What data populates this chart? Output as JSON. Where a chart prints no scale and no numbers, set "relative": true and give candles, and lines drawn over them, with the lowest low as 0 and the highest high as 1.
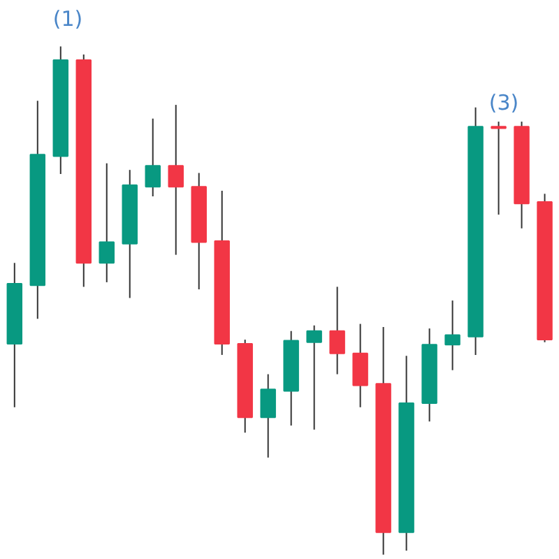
{
  "chart_data": {
    "type": "candlestick",
    "relative": true,
    "tick_labels": false,
    "categories": [
      null,
      null,
      null,
      null,
      null,
      null,
      null,
      null,
      null,
      null,
      null,
      null,
      null,
      null,
      null,
      null,
      null,
      null,
      null,
      null,
      null,
      null,
      null,
      null
    ],
    "ohlc": [
      [
        0.415,
        0.574,
        0.29,
        0.533
      ],
      [
        0.53,
        0.893,
        0.464,
        0.787
      ],
      [
        0.784,
        1.0,
        0.749,
        0.973
      ],
      [
        0.973,
        0.984,
        0.527,
        0.574
      ],
      [
        0.574,
        0.77,
        0.536,
        0.615
      ],
      [
        0.612,
        0.757,
        0.505,
        0.727
      ],
      [
        0.724,
        0.858,
        0.705,
        0.765
      ],
      [
        0.765,
        0.885,
        0.59,
        0.724
      ],
      [
        0.724,
        0.751,
        0.522,
        0.615
      ],
      [
        0.617,
        0.716,
        0.393,
        0.415
      ],
      [
        0.415,
        0.423,
        0.24,
        0.27
      ],
      [
        0.27,
        0.355,
        0.191,
        0.325
      ],
      [
        0.322,
        0.44,
        0.254,
        0.421
      ],
      [
        0.418,
        0.451,
        0.246,
        0.44
      ],
      [
        0.44,
        0.527,
        0.355,
        0.396
      ],
      [
        0.396,
        0.454,
        0.29,
        0.333
      ],
      [
        0.336,
        0.448,
        0.0,
        0.044
      ],
      [
        0.044,
        0.391,
        0.008,
        0.298
      ],
      [
        0.298,
        0.445,
        0.262,
        0.413
      ],
      [
        0.413,
        0.5,
        0.363,
        0.432
      ],
      [
        0.429,
        0.88,
        0.393,
        0.842
      ],
      [
        0.842,
        0.852,
        0.669,
        0.839
      ],
      [
        0.842,
        0.852,
        0.642,
        0.691
      ],
      [
        0.694,
        0.71,
        0.418,
        0.423
      ]
    ],
    "colors": [
      "#089981",
      "#089981",
      "#089981",
      "#f23645",
      "#089981",
      "#089981",
      "#089981",
      "#f23645",
      "#f23645",
      "#f23645",
      "#f23645",
      "#089981",
      "#089981",
      "#089981",
      "#f23645",
      "#f23645",
      "#f23645",
      "#089981",
      "#089981",
      "#089981",
      "#089981",
      "#f23645",
      "#f23645",
      "#f23645"
    ],
    "annotations": [
      "(1)",
      "(3)"
    ]
  }
}
